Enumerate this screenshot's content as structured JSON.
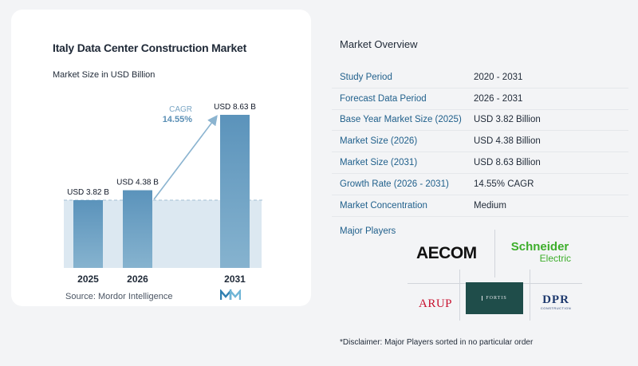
{
  "chart_data": {
    "type": "bar",
    "title": "Italy Data Center Construction Market",
    "subtitle": "Market Size in USD Billion",
    "categories": [
      "2025",
      "2026",
      "2031"
    ],
    "values": [
      3.82,
      4.38,
      8.63
    ],
    "value_labels": [
      "USD 3.82 B",
      "USD 4.38 B",
      "USD 8.63 B"
    ],
    "cagr_label": "CAGR",
    "cagr_value": "14.55%",
    "ylim": [
      0,
      8.63
    ],
    "colors": {
      "bar_top": "#5b93bb",
      "bar_bottom": "#86b3cf",
      "band": "#dce8f1",
      "arrow": "#8bb4d0",
      "cagr_text": "#5a8fb5"
    }
  },
  "source_text": "Source:  Mordor Intelligence",
  "overview": {
    "title": "Market Overview",
    "rows": [
      {
        "label": "Study Period",
        "value": "2020 - 2031"
      },
      {
        "label": "Forecast Data Period",
        "value": "2026 - 2031"
      },
      {
        "label": "Base Year Market Size (2025)",
        "value": "USD 3.82 Billion"
      },
      {
        "label": "Market Size (2026)",
        "value": "USD 4.38 Billion"
      },
      {
        "label": "Market Size (2031)",
        "value": "USD 8.63 Billion"
      },
      {
        "label": "Growth Rate (2026 - 2031)",
        "value": "14.55% CAGR"
      },
      {
        "label": "Market Concentration",
        "value": "Medium"
      }
    ]
  },
  "players": {
    "label": "Major Players",
    "aecom": "AECOM",
    "schneider_1": "Schneider",
    "schneider_2": "Electric",
    "arup": "ARUP",
    "fortis": "FORTIS",
    "dpr": "DPR",
    "dpr_sub": "CONSTRUCTION"
  },
  "disclaimer": "*Disclaimer: Major Players sorted in no particular order"
}
